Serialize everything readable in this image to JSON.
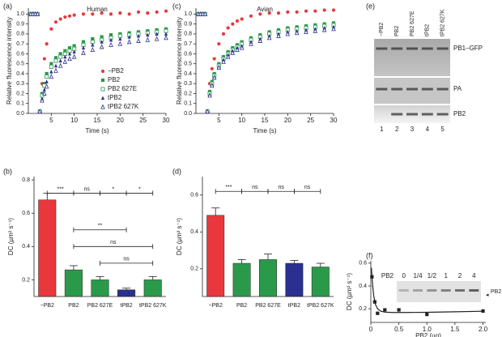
{
  "chart_data": [
    {
      "type": "scatter",
      "label": "(a)",
      "title": "Human",
      "xlabel": "Time (s)",
      "ylabel": "Relative fluorescence intensity",
      "x": [
        0.5,
        1,
        1.5,
        2,
        2.5,
        3,
        3.5,
        4,
        5,
        6,
        7,
        8,
        9,
        10,
        12,
        14,
        16,
        18,
        20,
        22,
        24,
        26,
        28,
        30
      ],
      "xlim": [
        0,
        30
      ],
      "xticks": [
        5,
        10,
        15,
        20,
        25,
        30
      ],
      "ylim": [
        0,
        1.06
      ],
      "yticks": [
        {
          "value": 0,
          "label": "0.0"
        },
        0.1,
        0.2,
        0.3,
        0.4,
        0.5,
        0.6,
        0.7,
        0.8,
        0.9,
        {
          "value": 1,
          "label": "1.0"
        }
      ],
      "legend": "lower right",
      "series": [
        {
          "name": "−PB2",
          "color": "#e8383d",
          "marker": "circle",
          "values": [
            1,
            1,
            1,
            1,
            0.02,
            0.3,
            0.55,
            0.7,
            0.85,
            0.92,
            0.95,
            0.97,
            0.98,
            0.99,
            1.0,
            1.0,
            1.01,
            1.0,
            1.01,
            1.0,
            1.02,
            1.01,
            1.02,
            1.03
          ]
        },
        {
          "name": "PB2",
          "color": "#2a9a4a",
          "marker": "square",
          "values": [
            1,
            1,
            1,
            1,
            0.02,
            0.2,
            0.3,
            0.4,
            0.5,
            0.56,
            0.6,
            0.63,
            0.66,
            0.68,
            0.72,
            0.75,
            0.77,
            0.79,
            0.8,
            0.81,
            0.82,
            0.83,
            0.84,
            0.85
          ]
        },
        {
          "name": "PB2 627E",
          "color": "#2a9a4a",
          "marker": "square-open",
          "values": [
            1,
            1,
            1,
            1,
            0.02,
            0.18,
            0.28,
            0.37,
            0.47,
            0.53,
            0.57,
            0.6,
            0.63,
            0.65,
            0.69,
            0.72,
            0.74,
            0.76,
            0.78,
            0.79,
            0.8,
            0.81,
            0.82,
            0.83
          ]
        },
        {
          "name": "tPB2",
          "color": "#2b2f8f",
          "marker": "triangle",
          "values": [
            1,
            1,
            1,
            1,
            0.02,
            0.15,
            0.24,
            0.32,
            0.42,
            0.48,
            0.53,
            0.57,
            0.6,
            0.62,
            0.66,
            0.69,
            0.72,
            0.74,
            0.75,
            0.77,
            0.78,
            0.79,
            0.8,
            0.8
          ]
        },
        {
          "name": "tPB2 627K",
          "color": "#2b2f8f",
          "marker": "triangle-open",
          "values": [
            1,
            1,
            1,
            1,
            0.02,
            0.13,
            0.2,
            0.27,
            0.37,
            0.43,
            0.48,
            0.52,
            0.55,
            0.57,
            0.61,
            0.64,
            0.67,
            0.69,
            0.7,
            0.72,
            0.73,
            0.74,
            0.75,
            0.76
          ]
        }
      ]
    },
    {
      "type": "scatter",
      "label": "(c)",
      "title": "Avian",
      "xlabel": "Time (s)",
      "ylabel": "Relative fluorescence intensity",
      "x": [
        0.5,
        1,
        1.5,
        2,
        2.5,
        3,
        3.5,
        4,
        5,
        6,
        7,
        8,
        9,
        10,
        12,
        14,
        16,
        18,
        20,
        22,
        24,
        26,
        28,
        30
      ],
      "xlim": [
        0,
        30
      ],
      "xticks": [
        5,
        10,
        15,
        20,
        25,
        30
      ],
      "ylim": [
        0,
        1.06
      ],
      "yticks": [
        {
          "value": 0,
          "label": "0.0"
        },
        0.1,
        0.2,
        0.3,
        0.4,
        0.5,
        0.6,
        0.7,
        0.8,
        0.9,
        {
          "value": 1,
          "label": "1.0"
        }
      ],
      "series": [
        {
          "color": "#e8383d",
          "marker": "circle",
          "values": [
            1,
            1,
            1,
            1,
            0.02,
            0.3,
            0.45,
            0.55,
            0.7,
            0.8,
            0.86,
            0.9,
            0.93,
            0.95,
            0.98,
            1.0,
            1.01,
            1.01,
            1.02,
            1.02,
            1.03,
            1.03,
            1.04,
            1.04
          ]
        },
        {
          "color": "#2a9a4a",
          "marker": "square",
          "values": [
            1,
            1,
            1,
            1,
            0.02,
            0.22,
            0.32,
            0.4,
            0.5,
            0.57,
            0.62,
            0.66,
            0.69,
            0.72,
            0.76,
            0.79,
            0.82,
            0.84,
            0.86,
            0.87,
            0.88,
            0.89,
            0.9,
            0.91
          ]
        },
        {
          "color": "#2a9a4a",
          "marker": "square-open",
          "values": [
            1,
            1,
            1,
            1,
            0.02,
            0.2,
            0.3,
            0.38,
            0.48,
            0.55,
            0.6,
            0.64,
            0.67,
            0.7,
            0.74,
            0.77,
            0.8,
            0.82,
            0.84,
            0.85,
            0.86,
            0.87,
            0.88,
            0.89
          ]
        },
        {
          "color": "#2b2f8f",
          "marker": "triangle",
          "values": [
            1,
            1,
            1,
            1,
            0.02,
            0.19,
            0.29,
            0.37,
            0.47,
            0.54,
            0.59,
            0.63,
            0.66,
            0.68,
            0.72,
            0.75,
            0.78,
            0.8,
            0.82,
            0.83,
            0.84,
            0.85,
            0.86,
            0.87
          ]
        },
        {
          "color": "#2b2f8f",
          "marker": "triangle-open",
          "values": [
            1,
            1,
            1,
            1,
            0.02,
            0.18,
            0.28,
            0.36,
            0.46,
            0.52,
            0.57,
            0.61,
            0.64,
            0.66,
            0.7,
            0.73,
            0.76,
            0.78,
            0.8,
            0.81,
            0.82,
            0.83,
            0.84,
            0.85
          ]
        }
      ]
    },
    {
      "type": "bar",
      "label": "(b)",
      "ylabel": "DC (µm² s⁻¹)",
      "categories": [
        "−PB2",
        "PB2",
        "PB2 627E",
        "tPB2",
        "tPB2 627K"
      ],
      "values": [
        0.68,
        0.26,
        0.2,
        0.14,
        0.2
      ],
      "errors": [
        0.04,
        0.025,
        0.02,
        0.01,
        0.02
      ],
      "colors": [
        "#e8383d",
        "#2a9a4a",
        "#2a9a4a",
        "#2b2f8f",
        "#2a9a4a"
      ],
      "ylim": [
        0.1,
        0.82
      ],
      "yticks": [
        0.2,
        0.4,
        0.6,
        0.8
      ],
      "significance": [
        "***",
        "ns",
        "*",
        "*",
        "**",
        "ns",
        "ns"
      ]
    },
    {
      "type": "bar",
      "label": "(d)",
      "ylabel": "DC (µm² s⁻¹)",
      "categories": [
        "−PB2",
        "PB2",
        "PB2 627E",
        "tPB2",
        "tPB2 627K"
      ],
      "values": [
        0.49,
        0.23,
        0.25,
        0.23,
        0.21
      ],
      "errors": [
        0.04,
        0.02,
        0.03,
        0.015,
        0.02
      ],
      "colors": [
        "#e8383d",
        "#2a9a4a",
        "#2a9a4a",
        "#2b2f8f",
        "#2a9a4a"
      ],
      "ylim": [
        0.05,
        0.7
      ],
      "yticks": [
        0.2,
        0.4,
        0.6
      ],
      "significance": [
        "***",
        "ns",
        "ns",
        "ns"
      ]
    },
    {
      "type": "scatter",
      "label": "(f)",
      "xlabel": "PB2 (µg)",
      "ylabel": "DC (µm² s⁻¹)",
      "x": [
        0.02,
        0.07,
        0.12,
        0.25,
        0.5,
        1.0,
        2.0
      ],
      "xlim": [
        0,
        2.05
      ],
      "xticks": [
        0,
        0.5,
        {
          "value": 1,
          "label": "1.0"
        },
        1.5,
        {
          "value": 2,
          "label": "2.0"
        }
      ],
      "ylim": [
        0.08,
        0.62
      ],
      "yticks": [
        0.2,
        0.4,
        0.6
      ],
      "series": [
        {
          "color": "#222222",
          "marker": "square",
          "values": [
            0.48,
            0.26,
            0.16,
            0.19,
            0.19,
            0.15,
            0.18
          ]
        }
      ],
      "fit": {
        "x": [
          0.01,
          0.03,
          0.05,
          0.08,
          0.12,
          0.18,
          0.25,
          0.4,
          0.6,
          1,
          1.5,
          2
        ],
        "y": [
          0.56,
          0.42,
          0.32,
          0.24,
          0.2,
          0.178,
          0.17,
          0.167,
          0.167,
          0.169,
          0.173,
          0.178
        ]
      },
      "inset": {
        "lanes": [
          "PB2",
          "0",
          "1/4",
          "1/2",
          "1",
          "2",
          "4"
        ],
        "band": "PB2"
      }
    }
  ],
  "gel": {
    "label": "(e)",
    "lanes": [
      "−PB2",
      "PB2",
      "PB2 627E",
      "tPB2",
      "tPB2 627K"
    ],
    "bands": [
      "PB1–GFP",
      "PA",
      "PB2"
    ],
    "lane_numbers": [
      1,
      2,
      3,
      4,
      5
    ]
  }
}
